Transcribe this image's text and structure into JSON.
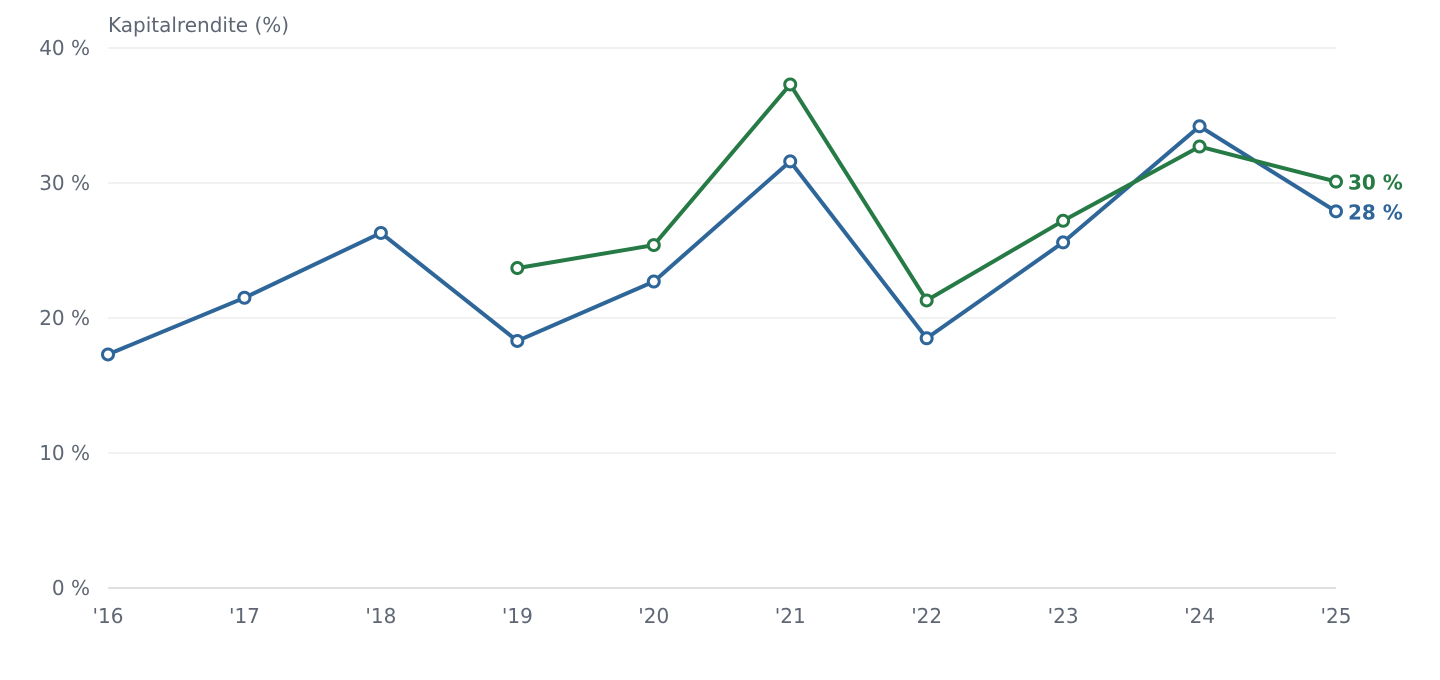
{
  "chart_data": {
    "type": "line",
    "ylabel": "Kapitalrendite (%)",
    "ylim": [
      0,
      40
    ],
    "y_ticks": [
      "0 %",
      "10 %",
      "20 %",
      "30 %",
      "40 %"
    ],
    "y_tick_values": [
      0,
      10,
      20,
      30,
      40
    ],
    "categories": [
      "'16",
      "'17",
      "'18",
      "'19",
      "'20",
      "'21",
      "'22",
      "'23",
      "'24",
      "'25"
    ],
    "grid": true,
    "series": [
      {
        "color": "#2e6699",
        "values": [
          17.3,
          21.5,
          26.3,
          18.3,
          22.7,
          31.6,
          18.5,
          25.6,
          34.2,
          27.9
        ],
        "end_label": "28 %"
      },
      {
        "color": "#267a45",
        "values": [
          null,
          null,
          null,
          23.7,
          25.4,
          37.3,
          21.3,
          27.2,
          32.7,
          30.1
        ],
        "end_label": "30 %"
      }
    ]
  }
}
